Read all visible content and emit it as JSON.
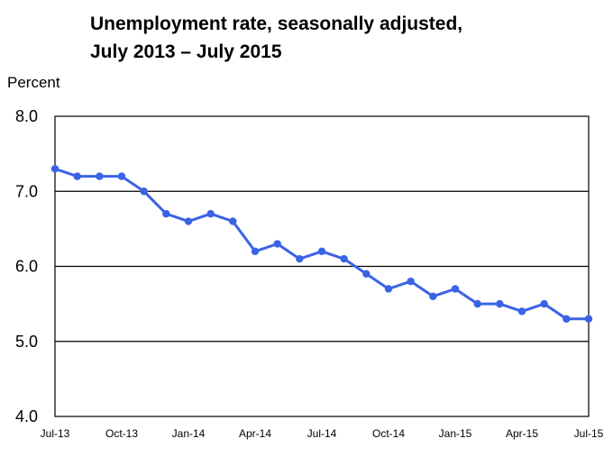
{
  "chart_data": {
    "type": "line",
    "title_line1": "Unemployment rate, seasonally adjusted,",
    "title_line2": "July 2013 – July 2015",
    "ylabel": "Percent",
    "xlabel": "",
    "ylim": [
      4.0,
      8.0
    ],
    "y_ticks": [
      "4.0",
      "5.0",
      "6.0",
      "7.0",
      "8.0"
    ],
    "x_tick_labels": [
      "Jul-13",
      "Oct-13",
      "Jan-14",
      "Apr-14",
      "Jul-14",
      "Oct-14",
      "Jan-15",
      "Apr-15",
      "Jul-15"
    ],
    "grid": "horizontal",
    "series": [
      {
        "color": "#3a63e6",
        "values": [
          7.3,
          7.2,
          7.2,
          7.2,
          7.0,
          6.7,
          6.6,
          6.7,
          6.6,
          6.2,
          6.3,
          6.1,
          6.2,
          6.1,
          5.9,
          5.7,
          5.8,
          5.6,
          5.7,
          5.5,
          5.5,
          5.4,
          5.5,
          5.3,
          5.3
        ]
      }
    ]
  }
}
